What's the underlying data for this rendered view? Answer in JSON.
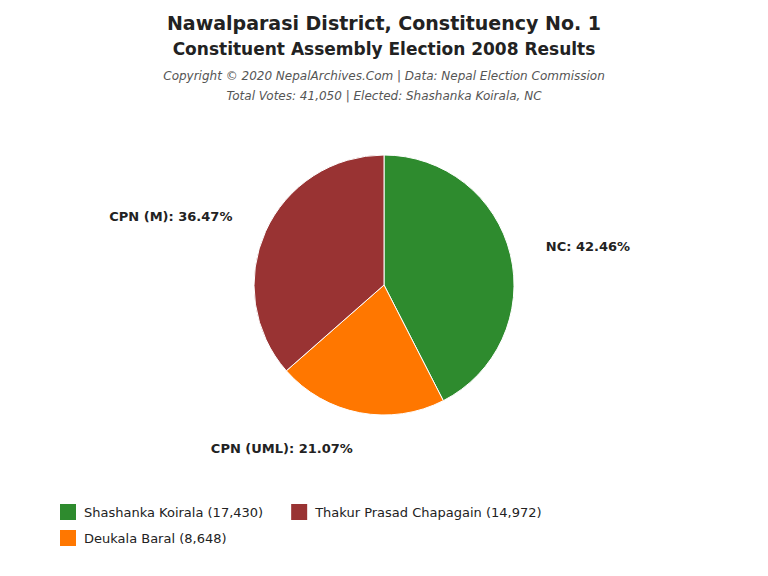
{
  "chart_data": {
    "type": "pie",
    "title": "Nawalparasi District, Constituency No. 1",
    "subtitle": "Constituent Assembly Election 2008 Results",
    "annotations": [
      "Copyright © 2020 NepalArchives.Com | Data: Nepal Election Commission",
      "Total Votes: 41,050 | Elected: Shashanka Koirala, NC"
    ],
    "categories": [
      "NC",
      "CPN (UML)",
      "CPN (M)"
    ],
    "values": [
      42.46,
      21.07,
      36.47
    ],
    "value_labels": [
      "NC: 42.46%",
      "CPN (UML): 21.07%",
      "CPN (M): 36.47%"
    ],
    "colors": [
      "#2e8b2e",
      "#ff7700",
      "#993333"
    ],
    "data_labels": true,
    "legend": "lower left",
    "legend_entries": [
      {
        "label": "Shashanka Koirala (17,430)",
        "color": "#2e8b2e"
      },
      {
        "label": "Thakur Prasad Chapagain (14,972)",
        "color": "#993333"
      },
      {
        "label": "Deukala Baral (8,648)",
        "color": "#ff7700"
      }
    ]
  }
}
